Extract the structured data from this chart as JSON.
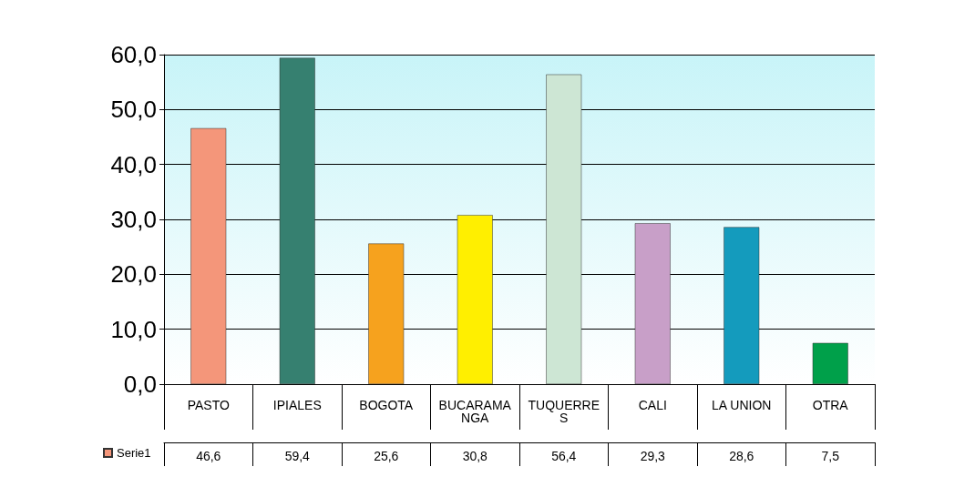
{
  "chart_data": {
    "type": "bar",
    "categories": [
      "PASTO",
      "IPIALES",
      "BOGOTA",
      "BUCARAMANGA",
      "TUQUERRES",
      "CALI",
      "LA UNION",
      "OTRA"
    ],
    "series": [
      {
        "name": "Serie1",
        "color": "#f4967a",
        "values": [
          46.6,
          59.4,
          25.6,
          30.8,
          56.4,
          29.3,
          28.6,
          7.5
        ],
        "value_labels": [
          "46,6",
          "59,4",
          "25,6",
          "30,8",
          "56,4",
          "29,3",
          "28,6",
          "7,5"
        ],
        "colors": [
          "#f4967a",
          "#368070",
          "#f6a21e",
          "#ffef00",
          "#cde6d4",
          "#c89fc8",
          "#149bbd",
          "#00a04a"
        ]
      }
    ],
    "ylim": [
      0,
      60
    ],
    "yticks": [
      {
        "value": 0,
        "label": "0,0"
      },
      {
        "value": 10,
        "label": "10,0"
      },
      {
        "value": 20,
        "label": "20,0"
      },
      {
        "value": 30,
        "label": "30,0"
      },
      {
        "value": 40,
        "label": "40,0"
      },
      {
        "value": 50,
        "label": "50,0"
      },
      {
        "value": 60,
        "label": "60,0"
      }
    ],
    "grid": "y",
    "legend": "bottom left"
  }
}
